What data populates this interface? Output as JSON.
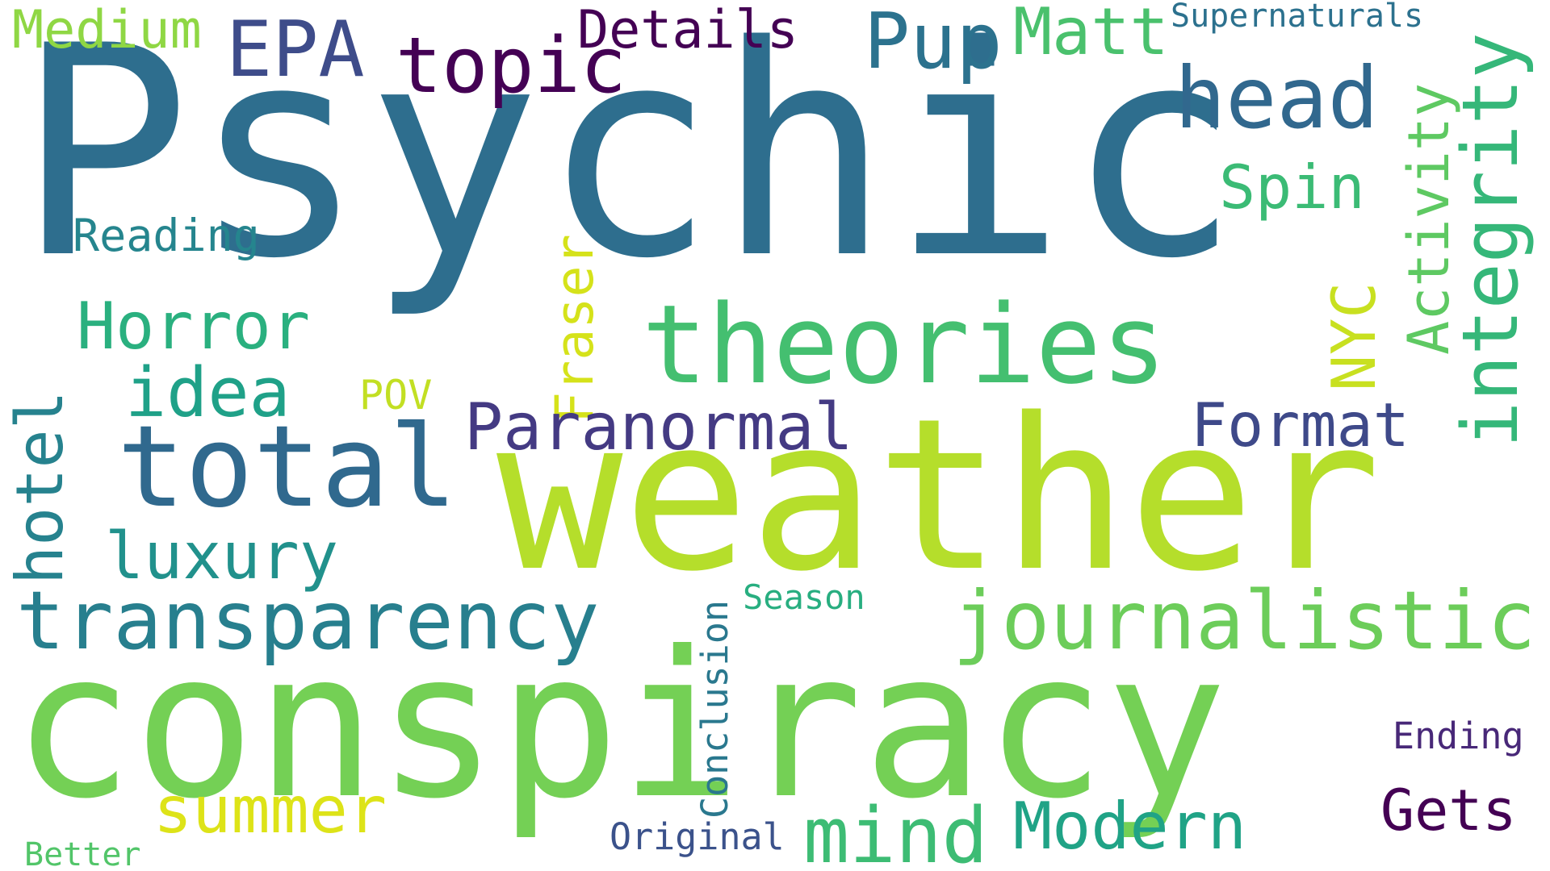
{
  "words": [
    {
      "id": "psychic",
      "text": "Psychic",
      "color": "#2e6e8e",
      "rotated": false
    },
    {
      "id": "weather",
      "text": "weather",
      "color": "#b5de2b",
      "rotated": false
    },
    {
      "id": "conspiracy",
      "text": "conspiracy",
      "color": "#74d055",
      "rotated": false
    },
    {
      "id": "theories",
      "text": "theories",
      "color": "#44bf70",
      "rotated": false
    },
    {
      "id": "total",
      "text": "total",
      "color": "#30698e",
      "rotated": false
    },
    {
      "id": "transparency",
      "text": "transparency",
      "color": "#277f8e",
      "rotated": false
    },
    {
      "id": "journalistic",
      "text": "journalistic",
      "color": "#6ccd5a",
      "rotated": false
    },
    {
      "id": "head",
      "text": "head",
      "color": "#31688e",
      "rotated": false
    },
    {
      "id": "integrity",
      "text": "integrity",
      "color": "#35b779",
      "rotated": true
    },
    {
      "id": "epa",
      "text": "EPA",
      "color": "#3e4c8a",
      "rotated": false
    },
    {
      "id": "topic",
      "text": "topic",
      "color": "#440154",
      "rotated": false
    },
    {
      "id": "pup",
      "text": "Pup",
      "color": "#2c728e",
      "rotated": false
    },
    {
      "id": "matt",
      "text": "Matt",
      "color": "#4ac16d",
      "rotated": false
    },
    {
      "id": "medium",
      "text": "Medium",
      "color": "#8fd744",
      "rotated": false
    },
    {
      "id": "details",
      "text": "Details",
      "color": "#440154",
      "rotated": false
    },
    {
      "id": "supernaturals",
      "text": "Supernaturals",
      "color": "#2c718e",
      "rotated": false
    },
    {
      "id": "activity",
      "text": "Activity",
      "color": "#5ec962",
      "rotated": true
    },
    {
      "id": "spin",
      "text": "Spin",
      "color": "#3bbb75",
      "rotated": false
    },
    {
      "id": "nyc",
      "text": "NYC",
      "color": "#c8e020",
      "rotated": true
    },
    {
      "id": "reading",
      "text": "Reading",
      "color": "#25858e",
      "rotated": false
    },
    {
      "id": "horror",
      "text": "Horror",
      "color": "#2ab07f",
      "rotated": false
    },
    {
      "id": "idea",
      "text": "idea",
      "color": "#1fa188",
      "rotated": false
    },
    {
      "id": "fraser",
      "text": "Fraser",
      "color": "#d5e21a",
      "rotated": true
    },
    {
      "id": "pov",
      "text": "POV",
      "color": "#c2df23",
      "rotated": false
    },
    {
      "id": "paranormal",
      "text": "Paranormal",
      "color": "#443a83",
      "rotated": false
    },
    {
      "id": "format",
      "text": "Format",
      "color": "#3e4989",
      "rotated": false
    },
    {
      "id": "hotel",
      "text": "hotel",
      "color": "#26828e",
      "rotated": true
    },
    {
      "id": "luxury",
      "text": "luxury",
      "color": "#21918c",
      "rotated": false
    },
    {
      "id": "season",
      "text": "Season",
      "color": "#28ae80",
      "rotated": false
    },
    {
      "id": "conclusion",
      "text": "Conclusion",
      "color": "#2a788e",
      "rotated": true
    },
    {
      "id": "ending",
      "text": "Ending",
      "color": "#482878",
      "rotated": false
    },
    {
      "id": "summer",
      "text": "summer",
      "color": "#dde318",
      "rotated": false
    },
    {
      "id": "mind",
      "text": "mind",
      "color": "#3dbc74",
      "rotated": false
    },
    {
      "id": "modern",
      "text": "Modern",
      "color": "#20a386",
      "rotated": false
    },
    {
      "id": "gets",
      "text": "Gets",
      "color": "#440154",
      "rotated": false
    },
    {
      "id": "original",
      "text": "Original",
      "color": "#3b528b",
      "rotated": false
    },
    {
      "id": "better",
      "text": "Better",
      "color": "#52c569",
      "rotated": false
    }
  ]
}
